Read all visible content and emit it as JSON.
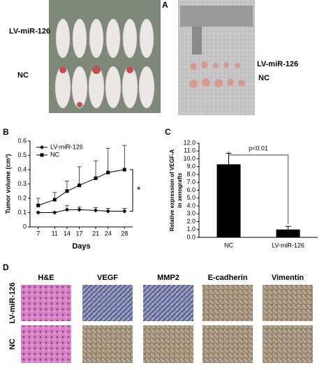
{
  "panel_labels": [
    "A",
    "B",
    "C",
    "D"
  ],
  "panel_a": {
    "left_labels": [
      "LV-miR-126",
      "NC"
    ],
    "right_labels": [
      "LV-miR-126",
      "NC"
    ]
  },
  "chart_data": [
    {
      "type": "line",
      "y_label": "Tumor volume (cm³)",
      "x_label": "Days",
      "x": [
        7,
        11,
        14,
        17,
        21,
        24,
        28
      ],
      "xlim": [
        5,
        30
      ],
      "xticks": [
        7,
        11,
        14,
        17,
        21,
        24,
        28
      ],
      "ylim": [
        0,
        0.6
      ],
      "yticks": [
        0,
        0.1,
        0.2,
        0.3,
        0.4,
        0.5,
        0.6
      ],
      "series": [
        {
          "name": "LV-miR-126",
          "color": "#000000",
          "marker": "diamond",
          "values": [
            0.1,
            0.1,
            0.12,
            0.12,
            0.115,
            0.11,
            0.11
          ],
          "errors": [
            0.005,
            0.005,
            0.03,
            0.02,
            0.02,
            0.02,
            0.02
          ]
        },
        {
          "name": "NC",
          "color": "#000000",
          "marker": "square",
          "values": [
            0.15,
            0.19,
            0.25,
            0.29,
            0.34,
            0.38,
            0.4
          ],
          "errors": [
            0.05,
            0.05,
            0.07,
            0.13,
            0.12,
            0.17,
            0.17
          ]
        }
      ],
      "annotation": "*"
    },
    {
      "type": "bar",
      "y_label": [
        "Relative expression of VEGF-A",
        "in xenografts"
      ],
      "categories": [
        "NC",
        "LV-miR-126"
      ],
      "values": [
        9.3,
        1.0
      ],
      "errors": [
        1.4,
        0.4
      ],
      "color": "#000000",
      "ylim": [
        0,
        12
      ],
      "yticks": [
        {
          "value": 0,
          "label": "0.0"
        },
        {
          "value": 1,
          "label": "1.0"
        },
        {
          "value": 2,
          "label": "2.0"
        },
        {
          "value": 3,
          "label": "3.0"
        },
        {
          "value": 4,
          "label": "4.0"
        },
        {
          "value": 5,
          "label": "5.0"
        },
        {
          "value": 6,
          "label": "6.0"
        },
        {
          "value": 7,
          "label": "7.0"
        },
        {
          "value": 8,
          "label": "8.0"
        },
        {
          "value": 9,
          "label": "9.0"
        },
        {
          "value": 10,
          "label": "10.0"
        },
        {
          "value": 11,
          "label": "11.0"
        },
        {
          "value": 12,
          "label": "12.0"
        }
      ],
      "annotation": "p<0.01"
    }
  ],
  "panel_d": {
    "columns": [
      "H&E",
      "VEGF",
      "MMP2",
      "E-cadherin",
      "Vimentin"
    ],
    "rows": [
      "LV-miR-126",
      "NC"
    ]
  }
}
